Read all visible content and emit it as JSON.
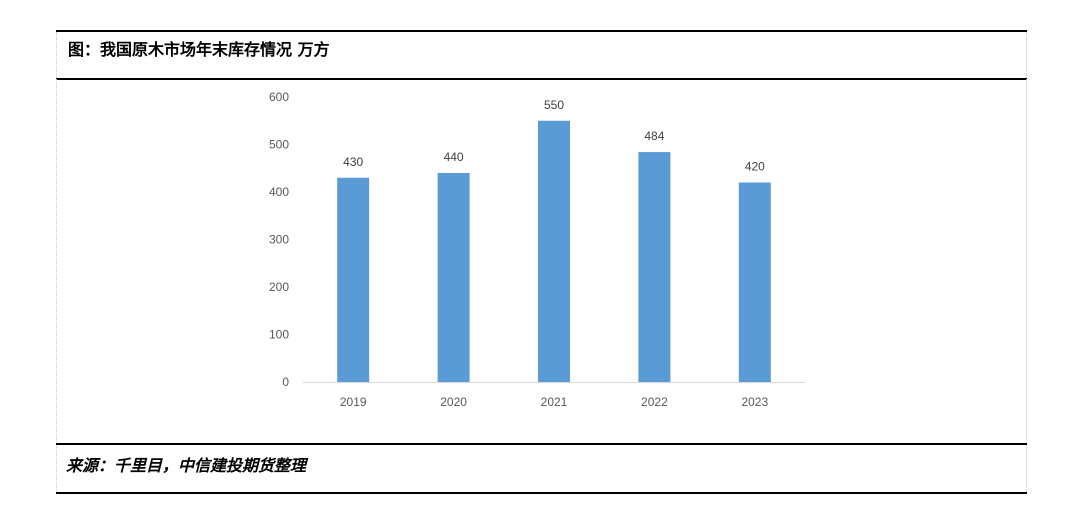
{
  "header": {
    "title": "图：我国原木市场年末库存情况 万方"
  },
  "footer": {
    "source": "来源：千里目，中信建投期货整理"
  },
  "chart_data": {
    "type": "bar",
    "title": "图：我国原木市场年末库存情况 万方",
    "categories": [
      "2019",
      "2020",
      "2021",
      "2022",
      "2023"
    ],
    "values": [
      430,
      440,
      550,
      484,
      420
    ],
    "data_labels": [
      "430",
      "440",
      "550",
      "484",
      "420"
    ],
    "y_ticks": [
      "0",
      "100",
      "200",
      "300",
      "400",
      "500",
      "600"
    ],
    "ylim": [
      0,
      600
    ],
    "xlabel": "",
    "ylabel": "",
    "grid": false,
    "legend": "none",
    "bar_color": "#5B9BD5",
    "axis_color": "#D9D9D9"
  }
}
